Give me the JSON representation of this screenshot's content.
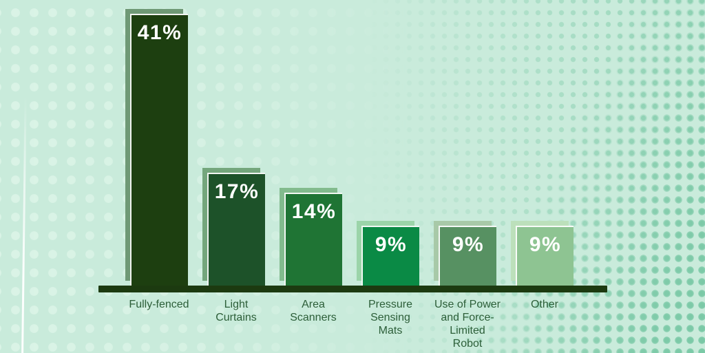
{
  "chart_data": {
    "type": "bar",
    "title": "",
    "xlabel": "",
    "ylabel": "",
    "categories": [
      "Fully-fenced",
      "Light Curtains",
      "Area Scanners",
      "Pressure Sensing Mats",
      "Use of Power and Force-Limited Robot",
      "Other"
    ],
    "values": [
      41,
      17,
      14,
      9,
      9,
      9
    ],
    "value_labels": [
      "41%",
      "17%",
      "14%",
      "9%",
      "9%",
      "9%"
    ],
    "category_label_lines": [
      "Fully-fenced",
      "Light\nCurtains",
      "Area\nScanners",
      "Pressure\nSensing\nMats",
      "Use of Power\nand Force-\nLimited\nRobot",
      "Other"
    ],
    "ylim": [
      0,
      41
    ],
    "grid": false,
    "legend": "none",
    "bar_colors": [
      "#1d3f10",
      "#1d5229",
      "#1f7434",
      "#0a8a45",
      "#579162",
      "#8ec492"
    ],
    "bar_shadow_colors": [
      "#6f9976",
      "#74a67c",
      "#82bb8d",
      "#9bd4a9",
      "#a8c9a8",
      "#bce0bb"
    ],
    "value_label_color": "#ffffff",
    "category_label_color": "#2c5e38",
    "axis_color": "#1c3a10",
    "background_color": "#c9ebdb",
    "dot_colors": {
      "left": "#daf3e6",
      "right": "#7ccaa7"
    }
  }
}
